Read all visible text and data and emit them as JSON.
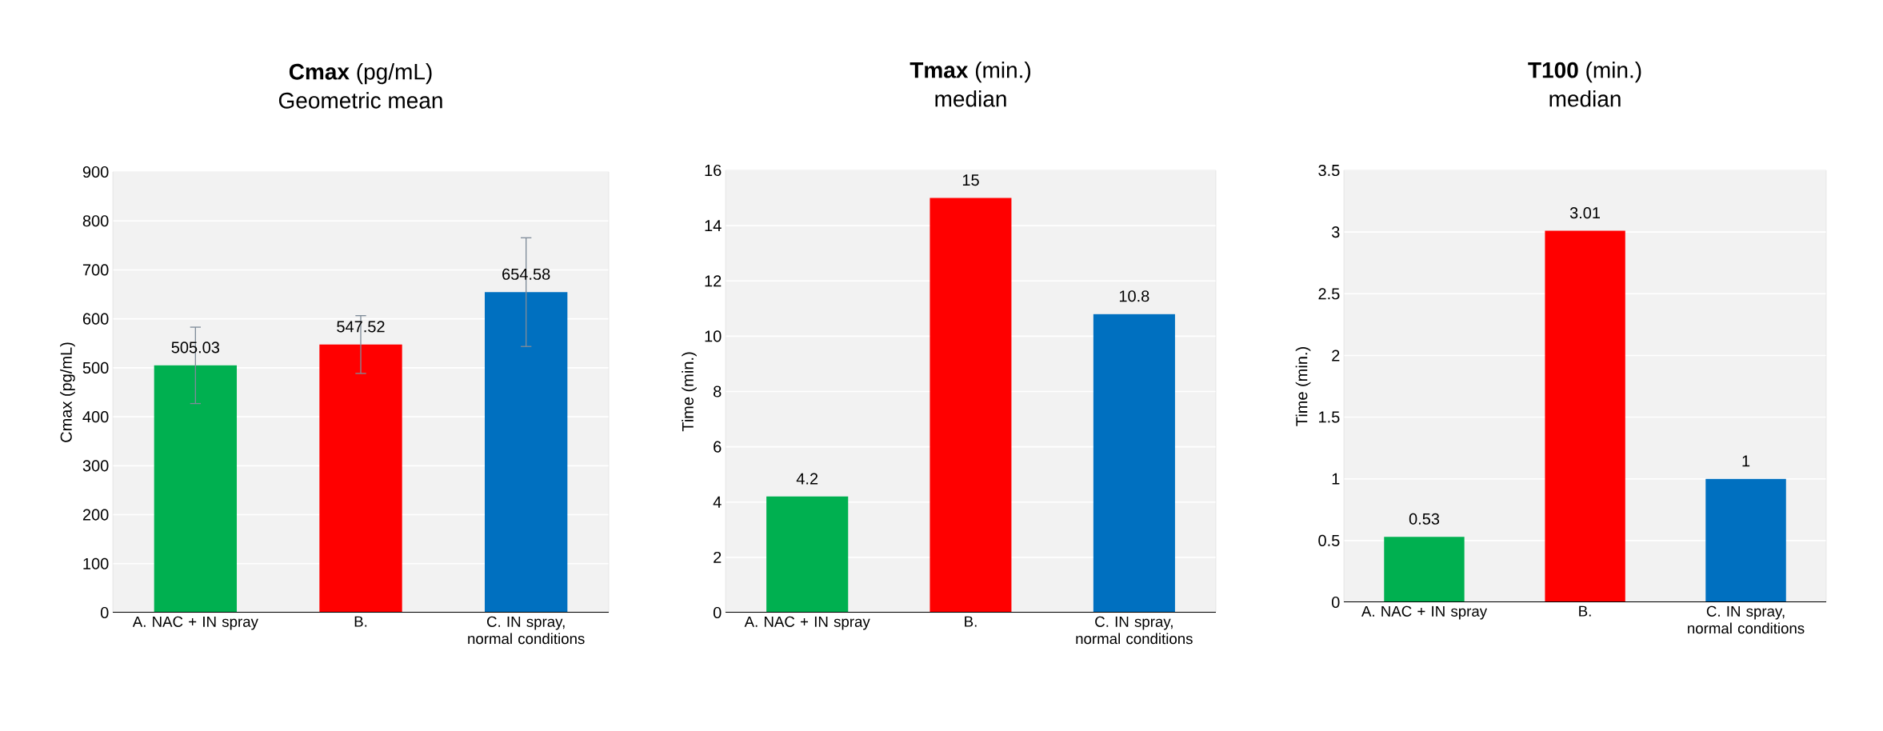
{
  "chart_data": [
    {
      "type": "bar",
      "title": "**Cmax** (pg/mL)",
      "subtitle": "Geometric mean",
      "ylabel": "Cmax (pg/mL)",
      "categories": [
        "A. NAC + IN spray",
        "B.",
        "C. IN spray, normal conditions"
      ],
      "values": [
        505.03,
        547.52,
        654.58
      ],
      "errors": [
        78,
        59,
        111
      ],
      "value_labels": [
        "505.03",
        "547.52",
        "654.58"
      ],
      "colors": [
        "#00b050",
        "#ff0000",
        "#0070c0"
      ],
      "ylim": [
        0,
        900
      ],
      "yticks": [
        0,
        100,
        200,
        300,
        400,
        500,
        600,
        700,
        800,
        900
      ],
      "grid": "y"
    },
    {
      "type": "bar",
      "title": "**Tmax** (min.)",
      "subtitle": "median",
      "ylabel": "Time (min.)",
      "categories": [
        "A. NAC + IN spray",
        "B.",
        "C. IN spray, normal conditions"
      ],
      "values": [
        4.2,
        15,
        10.8
      ],
      "value_labels": [
        "4.2",
        "15",
        "10.8"
      ],
      "colors": [
        "#00b050",
        "#ff0000",
        "#0070c0"
      ],
      "ylim": [
        0,
        16
      ],
      "yticks": [
        0,
        2,
        4,
        6,
        8,
        10,
        12,
        14,
        16
      ],
      "grid": "y"
    },
    {
      "type": "bar",
      "title": "**T100** (min.)",
      "subtitle": "median",
      "ylabel": "Time (min.)",
      "categories": [
        "A. NAC + IN spray",
        "B.",
        "C. IN spray, normal conditions"
      ],
      "values": [
        0.53,
        3.01,
        1
      ],
      "value_labels": [
        "0.53",
        "3.01",
        "1"
      ],
      "colors": [
        "#00b050",
        "#ff0000",
        "#0070c0"
      ],
      "ylim": [
        0,
        3.5
      ],
      "yticks": [
        0,
        0.5,
        1,
        1.5,
        2,
        2.5,
        3,
        3.5
      ],
      "grid": "y"
    }
  ]
}
